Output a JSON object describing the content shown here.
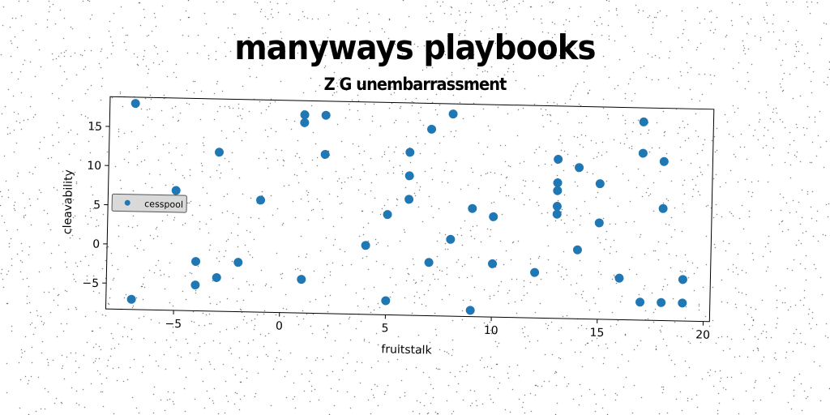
{
  "title": "manyways playbooks",
  "subtitle": "Z G unembarrassment",
  "colors": {
    "marker": "#1f77b4",
    "background": "#ffffff"
  },
  "chart_data": {
    "type": "scatter",
    "title": "Z G unembarrassment",
    "xlabel": "fruitstalk",
    "ylabel": "cleavability",
    "xlim": [
      -8.2,
      20.3
    ],
    "ylim": [
      -8.3,
      18.8
    ],
    "xticks": [
      -5,
      0,
      5,
      10,
      15,
      20
    ],
    "yticks": [
      -5,
      0,
      5,
      10,
      15
    ],
    "xtick_labels": [
      "−5",
      "0",
      "5",
      "10",
      "15",
      "20"
    ],
    "ytick_labels": [
      "−5",
      "0",
      "5",
      "10",
      "15"
    ],
    "grid": false,
    "legend_position": "center-left",
    "series": [
      {
        "name": "cesspool",
        "color": "#1f77b4",
        "points": [
          [
            -7,
            18
          ],
          [
            -7,
            -7
          ],
          [
            -5,
            7
          ],
          [
            -4,
            -2
          ],
          [
            -4,
            -5
          ],
          [
            -3,
            12
          ],
          [
            -3,
            -4
          ],
          [
            -2,
            -2
          ],
          [
            -1,
            6
          ],
          [
            1,
            16
          ],
          [
            1,
            17
          ],
          [
            1,
            -4
          ],
          [
            2,
            17
          ],
          [
            2,
            12
          ],
          [
            4,
            0.5
          ],
          [
            5,
            4.5
          ],
          [
            5,
            -6.5
          ],
          [
            6,
            12.5
          ],
          [
            6,
            9.5
          ],
          [
            6,
            6.5
          ],
          [
            7,
            15.5
          ],
          [
            7,
            -1.5
          ],
          [
            8,
            17.5
          ],
          [
            8,
            1.5
          ],
          [
            9,
            5.5
          ],
          [
            9,
            -7.5
          ],
          [
            10,
            4.5
          ],
          [
            10,
            -1.5
          ],
          [
            12,
            -2.5
          ],
          [
            13,
            12
          ],
          [
            13,
            9
          ],
          [
            13,
            8
          ],
          [
            13,
            6
          ],
          [
            13,
            5
          ],
          [
            14,
            11
          ],
          [
            14,
            0.5
          ],
          [
            15,
            9
          ],
          [
            15,
            4
          ],
          [
            16,
            -3
          ],
          [
            17,
            17
          ],
          [
            17,
            13
          ],
          [
            17,
            -6
          ],
          [
            18,
            12
          ],
          [
            18,
            6
          ],
          [
            18,
            -6
          ],
          [
            19,
            -3
          ],
          [
            19,
            -6
          ]
        ]
      }
    ]
  }
}
